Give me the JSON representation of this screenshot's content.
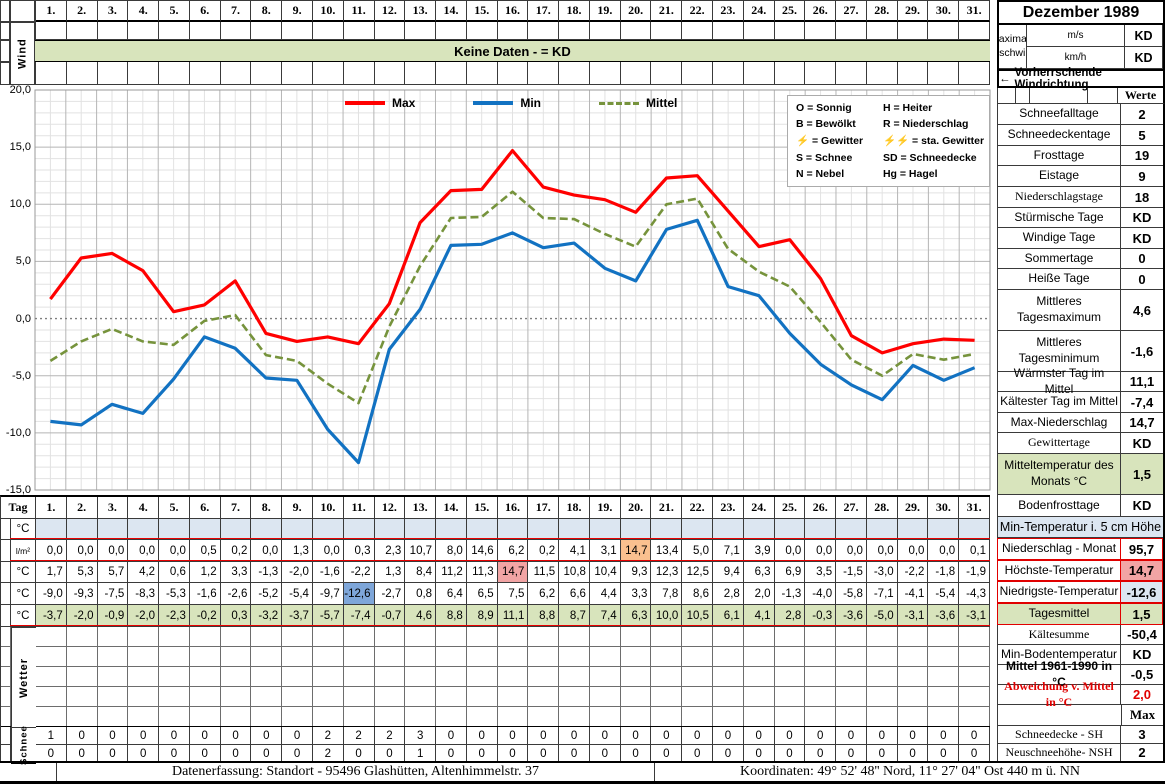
{
  "month_title": "Dezember 1989",
  "wind": {
    "vertical_label": "Wind",
    "no_data_banner": "Keine Daten -  = KD",
    "ms_unit": "m/s",
    "kmh_unit": "km/h",
    "max_speed_label": "Maximale Windgeschwindigkeit",
    "ms_value": "KD",
    "kmh_value": "KD",
    "direction_arrow": "←",
    "direction_label": "Vorherrschende Windrichtung"
  },
  "days": [
    "1.",
    "2.",
    "3.",
    "4.",
    "5.",
    "6.",
    "7.",
    "8.",
    "9.",
    "10.",
    "11.",
    "12.",
    "13.",
    "14.",
    "15.",
    "16.",
    "17.",
    "18.",
    "19.",
    "20.",
    "21.",
    "22.",
    "23.",
    "24.",
    "25.",
    "26.",
    "27.",
    "28.",
    "29.",
    "30.",
    "31."
  ],
  "chart_data": {
    "type": "line",
    "x": [
      1,
      2,
      3,
      4,
      5,
      6,
      7,
      8,
      9,
      10,
      11,
      12,
      13,
      14,
      15,
      16,
      17,
      18,
      19,
      20,
      21,
      22,
      23,
      24,
      25,
      26,
      27,
      28,
      29,
      30,
      31
    ],
    "series": [
      {
        "name": "Max",
        "color": "#ff0000",
        "style": "solid",
        "values": [
          1.7,
          5.3,
          5.7,
          4.2,
          0.6,
          1.2,
          3.3,
          -1.3,
          -2.0,
          -1.6,
          -2.2,
          1.3,
          8.4,
          11.2,
          11.3,
          14.7,
          11.5,
          10.8,
          10.4,
          9.3,
          12.3,
          12.5,
          9.4,
          6.3,
          6.9,
          3.5,
          -1.5,
          -3.0,
          -2.2,
          -1.8,
          -1.9
        ]
      },
      {
        "name": "Min",
        "color": "#1272c2",
        "style": "solid",
        "values": [
          -9.0,
          -9.3,
          -7.5,
          -8.3,
          -5.3,
          -1.6,
          -2.6,
          -5.2,
          -5.4,
          -9.7,
          -12.6,
          -2.7,
          0.8,
          6.4,
          6.5,
          7.5,
          6.2,
          6.6,
          4.4,
          3.3,
          7.8,
          8.6,
          2.8,
          2.0,
          -1.3,
          -4.0,
          -5.8,
          -7.1,
          -4.1,
          -5.4,
          -4.3
        ]
      },
      {
        "name": "Mittel",
        "color": "#76933c",
        "style": "dashed",
        "values": [
          -3.7,
          -2.0,
          -0.9,
          -2.0,
          -2.3,
          -0.2,
          0.3,
          -3.2,
          -3.7,
          -5.7,
          -7.4,
          -0.7,
          4.6,
          8.8,
          8.9,
          11.1,
          8.8,
          8.7,
          7.4,
          6.3,
          10.0,
          10.5,
          6.1,
          4.1,
          2.8,
          -0.3,
          -3.6,
          -5.0,
          -3.1,
          -3.6,
          -3.1
        ]
      }
    ],
    "ylim": [
      -15,
      20
    ],
    "yticks_values": [
      20,
      15,
      10,
      5,
      0,
      -5,
      -10,
      -15
    ],
    "yticks_labels": [
      "20,0",
      "15,0",
      "10,0",
      "5,0",
      "0,0",
      "-5,0",
      "-10,0",
      "-15,0"
    ],
    "grid": true,
    "legend_position": "top"
  },
  "weather_legend": {
    "left": [
      {
        "key": "O",
        "text": "= Sonnig",
        "red": false
      },
      {
        "key": "B",
        "text": "= Bewölkt",
        "red": false
      },
      {
        "key": "⚡",
        "text": "= Gewitter",
        "red": true
      },
      {
        "key": "S",
        "text": "= Schnee",
        "red": false
      },
      {
        "key": "N",
        "text": "= Nebel",
        "red": false
      }
    ],
    "right": [
      {
        "key": "H",
        "text": "= Heiter",
        "red": false
      },
      {
        "key": "R",
        "text": "= Niederschlag",
        "red": false
      },
      {
        "key": "⚡⚡",
        "text": "= sta. Gewitter",
        "red": true
      },
      {
        "key": "SD",
        "text": "= Schneedecke",
        "red": false
      },
      {
        "key": "Hg",
        "text": "= Hagel",
        "red": false
      }
    ]
  },
  "day_table": {
    "tag_label": "Tag",
    "wetter_label": "Wetter",
    "schnee_label": "Schnee",
    "rows": [
      {
        "id": "min5cm",
        "unit": "°C",
        "bg": "blue",
        "values": [
          "",
          "",
          "",
          "",
          "",
          "",
          "",
          "",
          "",
          "",
          "",
          "",
          "",
          "",
          "",
          "",
          "",
          "",
          "",
          "",
          "",
          "",
          "",
          "",
          "",
          "",
          "",
          "",
          "",
          "",
          ""
        ]
      },
      {
        "id": "precip",
        "unit": "l/m²",
        "bg": "",
        "values": [
          "0,0",
          "0,0",
          "0,0",
          "0,0",
          "0,0",
          "0,5",
          "0,2",
          "0,0",
          "1,3",
          "0,0",
          "0,3",
          "2,3",
          "10,7",
          "8,0",
          "14,6",
          "6,2",
          "0,2",
          "4,1",
          "3,1",
          "14,7",
          "13,4",
          "5,0",
          "7,1",
          "3,9",
          "0,0",
          "0,0",
          "0,0",
          "0,0",
          "0,0",
          "0,0",
          "0,1"
        ],
        "highlights": {
          "20": "hl-orange"
        }
      },
      {
        "id": "tmax",
        "unit": "°C",
        "bg": "",
        "values": [
          "1,7",
          "5,3",
          "5,7",
          "4,2",
          "0,6",
          "1,2",
          "3,3",
          "-1,3",
          "-2,0",
          "-1,6",
          "-2,2",
          "1,3",
          "8,4",
          "11,2",
          "11,3",
          "14,7",
          "11,5",
          "10,8",
          "10,4",
          "9,3",
          "12,3",
          "12,5",
          "9,4",
          "6,3",
          "6,9",
          "3,5",
          "-1,5",
          "-3,0",
          "-2,2",
          "-1,8",
          "-1,9"
        ],
        "highlights": {
          "16": "hl-pink"
        }
      },
      {
        "id": "tmin",
        "unit": "°C",
        "bg": "",
        "values": [
          "-9,0",
          "-9,3",
          "-7,5",
          "-8,3",
          "-5,3",
          "-1,6",
          "-2,6",
          "-5,2",
          "-5,4",
          "-9,7",
          "-12,6",
          "-2,7",
          "0,8",
          "6,4",
          "6,5",
          "7,5",
          "6,2",
          "6,6",
          "4,4",
          "3,3",
          "7,8",
          "8,6",
          "2,8",
          "2,0",
          "-1,3",
          "-4,0",
          "-5,8",
          "-7,1",
          "-4,1",
          "-5,4",
          "-4,3"
        ],
        "highlights": {
          "11": "hl-blue"
        }
      },
      {
        "id": "tmittel",
        "unit": "°C",
        "bg": "green",
        "values": [
          "-3,7",
          "-2,0",
          "-0,9",
          "-2,0",
          "-2,3",
          "-0,2",
          "0,3",
          "-3,2",
          "-3,7",
          "-5,7",
          "-7,4",
          "-0,7",
          "4,6",
          "8,8",
          "8,9",
          "11,1",
          "8,8",
          "8,7",
          "7,4",
          "6,3",
          "10,0",
          "10,5",
          "6,1",
          "4,1",
          "2,8",
          "-0,3",
          "-3,6",
          "-5,0",
          "-3,1",
          "-3,6",
          "-3,1"
        ]
      }
    ],
    "schnee_rows": [
      {
        "id": "sh",
        "values": [
          "1",
          "0",
          "0",
          "0",
          "0",
          "0",
          "0",
          "0",
          "0",
          "2",
          "2",
          "2",
          "3",
          "0",
          "0",
          "0",
          "0",
          "0",
          "0",
          "0",
          "0",
          "0",
          "0",
          "0",
          "0",
          "0",
          "0",
          "0",
          "0",
          "0",
          "0"
        ]
      },
      {
        "id": "nsh",
        "values": [
          "0",
          "0",
          "0",
          "0",
          "0",
          "0",
          "0",
          "0",
          "0",
          "2",
          "0",
          "0",
          "1",
          "0",
          "0",
          "0",
          "0",
          "0",
          "0",
          "0",
          "0",
          "0",
          "0",
          "0",
          "0",
          "0",
          "0",
          "0",
          "0",
          "0",
          "0"
        ]
      }
    ]
  },
  "sidebar": {
    "werte_header": "Werte",
    "rows": [
      {
        "id": "schneefalltage",
        "label": "Schneefalltage",
        "value": "2"
      },
      {
        "id": "schneedeckentage",
        "label": "Schneedeckentage",
        "value": "5"
      },
      {
        "id": "frosttage",
        "label": "Frosttage",
        "value": "19"
      },
      {
        "id": "eistage",
        "label": "Eistage",
        "value": "9"
      },
      {
        "id": "niederschlagstage",
        "label": "Niederschlagstage",
        "value": "18",
        "serif": true
      },
      {
        "id": "stuermische-tage",
        "label": "Stürmische Tage",
        "value": "KD"
      },
      {
        "id": "windige-tage",
        "label": "Windige Tage",
        "value": "KD"
      },
      {
        "id": "sommertage",
        "label": "Sommertage",
        "value": "0"
      },
      {
        "id": "heisse-tage",
        "label": "Heiße Tage",
        "value": "0"
      },
      {
        "id": "mittleres-tagesmaximum",
        "label": "Mittleres Tagesmaximum",
        "value": "4,6",
        "tall": true
      },
      {
        "id": "mittleres-tagesminimum",
        "label": "Mittleres Tagesminimum",
        "value": "-1,6",
        "tall": true
      },
      {
        "id": "waermster-tag",
        "label": "Wärmster Tag im Mittel",
        "value": "11,1"
      },
      {
        "id": "kaeltester-tag",
        "label": "Kältester Tag im Mittel",
        "value": "-7,4"
      },
      {
        "id": "max-niederschlag",
        "label": "Max-Niederschlag",
        "value": "14,7"
      },
      {
        "id": "gewittertage",
        "label": "Gewittertage",
        "value": "KD",
        "serif": true
      },
      {
        "id": "mitteltemperatur-monat",
        "label": "Mitteltemperatur des Monats °C",
        "value": "1,5",
        "tall": true,
        "label_bg": "bggreen",
        "value_bg": "bggreen"
      },
      {
        "id": "bodenfrosttage",
        "label": "Bodenfrosttage",
        "value": "KD"
      },
      {
        "id": "min-temperatur-5cm",
        "label": "Min-Temperatur i. 5 cm Höhe",
        "full": true
      },
      {
        "id": "niederschlag-monat",
        "label": "Niederschlag - Monat",
        "value": "95,7",
        "red_border": true
      },
      {
        "id": "hoechste-temperatur",
        "label": "Höchste-Temperatur",
        "value": "14,7",
        "red_border": true,
        "value_bg": "hl-pink"
      },
      {
        "id": "niedrigste-temperatur",
        "label": "Niedrigste-Temperatur",
        "value": "-12,6",
        "red_border": true,
        "value_bg": "bgblue"
      },
      {
        "id": "tagesmittel",
        "label": "Tagesmittel",
        "value": "1,5",
        "red_border": true,
        "label_bg": "bggreen",
        "value_bg": "bggreen"
      },
      {
        "id": "kaeltesumme",
        "label": "Kältesumme",
        "value": "-50,4",
        "serif": true
      },
      {
        "id": "min-bodentemperatur",
        "label": "Min-Bodentemperatur",
        "value": "KD"
      },
      {
        "id": "mittel-1961-1990",
        "label": "Mittel 1961-1990 in °C",
        "value": "-0,5",
        "bold_label": true
      },
      {
        "id": "abweichung-mittel",
        "label": "Abweichung v. Mittel in °C",
        "value": "2,0",
        "bold_label": true,
        "red_text": true,
        "serif": true
      },
      {
        "id": "max-header",
        "label": "",
        "value": "Max",
        "no_label_border": true,
        "serif_value": true
      },
      {
        "id": "schneedecke-sh",
        "label": "Schneedecke -   SH",
        "value": "3",
        "serif": true
      },
      {
        "id": "neuschneehoehe-nsh",
        "label": "Neuschneehöhe- NSH",
        "value": "2",
        "serif": true
      }
    ]
  },
  "footer": {
    "left": "Datenerfassung:  Standort -  95496  Glashütten, Altenhimmelstr. 37",
    "right": "Koordinaten:  49° 52' 48'' Nord,   11° 27' 04'' Ost   440 m ü. NN"
  }
}
